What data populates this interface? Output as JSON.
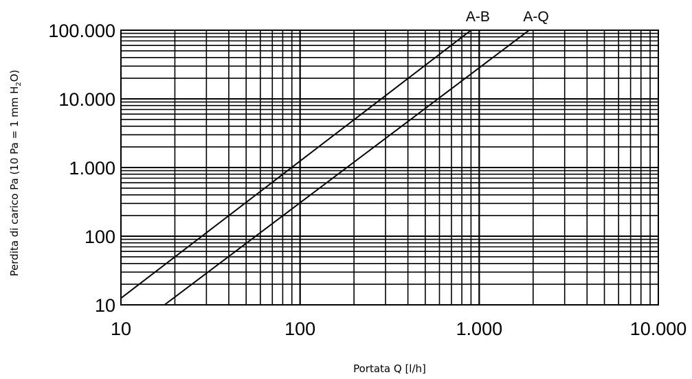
{
  "chart_data": {
    "type": "line",
    "xscale": "log",
    "yscale": "log",
    "xlim": [
      10,
      10000
    ],
    "ylim": [
      10,
      100000
    ],
    "grid": true,
    "xlabel": "Portata Q [l/h]",
    "ylabel": {
      "before": "Perdita di carico Pa (10 Pa = 1 mm H",
      "sub": "2",
      "after": "O)"
    },
    "xticks": [
      {
        "value": 10,
        "label": "10"
      },
      {
        "value": 100,
        "label": "100"
      },
      {
        "value": 1000,
        "label": "1.000"
      },
      {
        "value": 10000,
        "label": "10.000"
      }
    ],
    "yticks": [
      {
        "value": 10,
        "label": "10"
      },
      {
        "value": 100,
        "label": "100"
      },
      {
        "value": 1000,
        "label": "1.000"
      },
      {
        "value": 10000,
        "label": "10.000"
      },
      {
        "value": 100000,
        "label": "100.000"
      }
    ],
    "series": [
      {
        "name": "A-B",
        "x": [
          10,
          900
        ],
        "y": [
          12.5,
          100000
        ]
      },
      {
        "name": "A-Q",
        "x": [
          17.5,
          1900
        ],
        "y": [
          10,
          100000
        ]
      }
    ],
    "colors": {
      "line": "#000000",
      "grid": "#000000",
      "background": "#ffffff"
    }
  }
}
